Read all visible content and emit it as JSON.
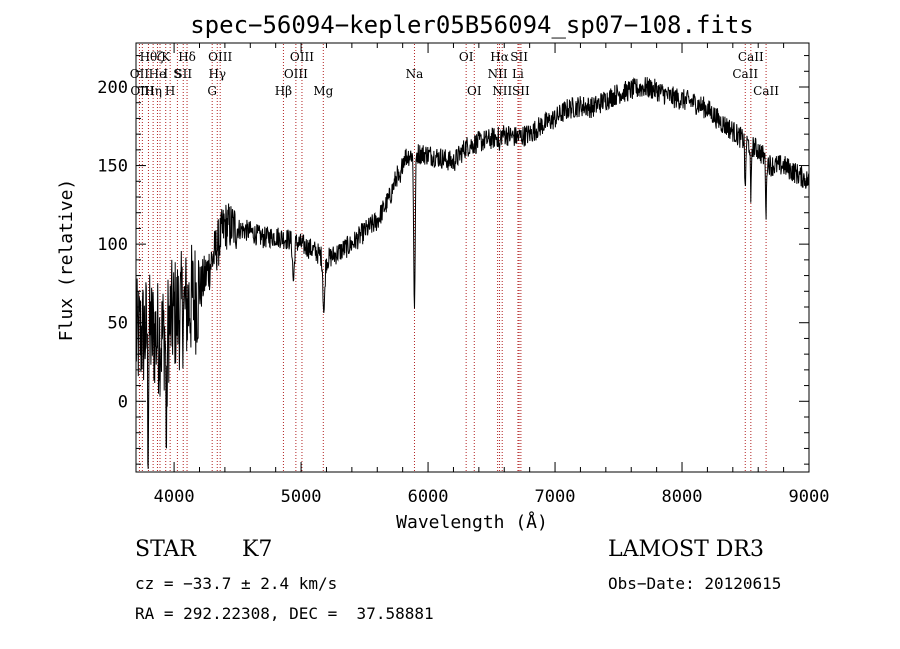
{
  "chart_data": {
    "type": "line",
    "title": "spec−56094−kepler05B56094_sp07−108.fits",
    "xlabel": "Wavelength (Å)",
    "ylabel": "Flux (relative)",
    "xlim": [
      3700,
      9000
    ],
    "ylim": [
      -45,
      228
    ],
    "x_ticks": [
      4000,
      5000,
      6000,
      7000,
      8000,
      9000
    ],
    "y_ticks": [
      0,
      50,
      100,
      150,
      200
    ],
    "continuum": [
      [
        3700,
        40
      ],
      [
        3800,
        45
      ],
      [
        3900,
        40
      ],
      [
        4000,
        55
      ],
      [
        4100,
        60
      ],
      [
        4200,
        70
      ],
      [
        4300,
        90
      ],
      [
        4400,
        112
      ],
      [
        4500,
        110
      ],
      [
        4600,
        108
      ],
      [
        4700,
        104
      ],
      [
        4800,
        105
      ],
      [
        4900,
        103
      ],
      [
        5000,
        100
      ],
      [
        5100,
        96
      ],
      [
        5200,
        90
      ],
      [
        5300,
        95
      ],
      [
        5400,
        100
      ],
      [
        5500,
        108
      ],
      [
        5600,
        115
      ],
      [
        5700,
        130
      ],
      [
        5800,
        155
      ],
      [
        5900,
        158
      ],
      [
        6000,
        157
      ],
      [
        6100,
        155
      ],
      [
        6200,
        152
      ],
      [
        6300,
        162
      ],
      [
        6400,
        165
      ],
      [
        6500,
        167
      ],
      [
        6600,
        170
      ],
      [
        6700,
        168
      ],
      [
        6800,
        170
      ],
      [
        6900,
        176
      ],
      [
        7000,
        180
      ],
      [
        7100,
        186
      ],
      [
        7200,
        188
      ],
      [
        7300,
        187
      ],
      [
        7400,
        192
      ],
      [
        7500,
        196
      ],
      [
        7600,
        198
      ],
      [
        7700,
        200
      ],
      [
        7800,
        198
      ],
      [
        7900,
        194
      ],
      [
        8000,
        192
      ],
      [
        8100,
        190
      ],
      [
        8200,
        186
      ],
      [
        8300,
        178
      ],
      [
        8400,
        172
      ],
      [
        8500,
        165
      ],
      [
        8600,
        160
      ],
      [
        8700,
        150
      ],
      [
        8800,
        150
      ],
      [
        8900,
        145
      ],
      [
        9000,
        140
      ]
    ],
    "absorption_features": [
      {
        "center": 5893,
        "depth": 100,
        "width": 8
      },
      {
        "center": 5180,
        "depth": 35,
        "width": 10
      },
      {
        "center": 5780,
        "depth": 12,
        "width": 14
      },
      {
        "center": 4940,
        "depth": 25,
        "width": 10
      },
      {
        "center": 3940,
        "depth": 75,
        "width": 6
      },
      {
        "center": 3795,
        "depth": 70,
        "width": 5
      },
      {
        "center": 8498,
        "depth": 35,
        "width": 5
      },
      {
        "center": 8542,
        "depth": 40,
        "width": 5
      },
      {
        "center": 8662,
        "depth": 35,
        "width": 5
      },
      {
        "center": 6563,
        "depth": 10,
        "width": 6
      }
    ],
    "line_markers": [
      {
        "wavelength": 3727,
        "labels": [
          {
            "text": "OII",
            "row": 1
          }
        ]
      },
      {
        "wavelength": 3750,
        "labels": [
          {
            "text": "OIII",
            "row": 2
          }
        ]
      },
      {
        "wavelength": 3798,
        "labels": [
          {
            "text": "Hθ",
            "row": 0
          }
        ]
      },
      {
        "wavelength": 3835,
        "labels": [
          {
            "text": "Hη",
            "row": 2
          }
        ]
      },
      {
        "wavelength": 3869,
        "labels": [
          {
            "text": "He",
            "row": 1
          }
        ]
      },
      {
        "wavelength": 3889,
        "labels": [
          {
            "text": "ζ",
            "row": 0
          }
        ]
      },
      {
        "wavelength": 3934,
        "labels": [
          {
            "text": "K",
            "row": 0
          },
          {
            "text": "I",
            "row": 1
          }
        ]
      },
      {
        "wavelength": 3969,
        "labels": [
          {
            "text": "H",
            "row": 2
          }
        ]
      },
      {
        "wavelength": 4026,
        "labels": [
          {
            "text": "S",
            "row": 1
          }
        ]
      },
      {
        "wavelength": 4072,
        "labels": [
          {
            "text": "SII",
            "row": 1
          }
        ]
      },
      {
        "wavelength": 4102,
        "labels": [
          {
            "text": "Hδ",
            "row": 0
          }
        ]
      },
      {
        "wavelength": 4300,
        "labels": [
          {
            "text": "G",
            "row": 2
          }
        ]
      },
      {
        "wavelength": 4340,
        "labels": [
          {
            "text": "Hγ",
            "row": 1
          }
        ]
      },
      {
        "wavelength": 4363,
        "labels": [
          {
            "text": "OIII",
            "row": 0
          }
        ]
      },
      {
        "wavelength": 4861,
        "labels": [
          {
            "text": "Hβ",
            "row": 2
          }
        ]
      },
      {
        "wavelength": 4959,
        "labels": [
          {
            "text": "OIII",
            "row": 1
          }
        ]
      },
      {
        "wavelength": 5007,
        "labels": [
          {
            "text": "OIII",
            "row": 0
          }
        ]
      },
      {
        "wavelength": 5175,
        "labels": [
          {
            "text": "Mg",
            "row": 2
          }
        ]
      },
      {
        "wavelength": 5893,
        "labels": [
          {
            "text": "Na",
            "row": 1
          }
        ]
      },
      {
        "wavelength": 6300,
        "labels": [
          {
            "text": "OI",
            "row": 0
          }
        ]
      },
      {
        "wavelength": 6364,
        "labels": [
          {
            "text": "OI",
            "row": 2
          }
        ]
      },
      {
        "wavelength": 6548,
        "labels": [
          {
            "text": "NII",
            "row": 1
          }
        ]
      },
      {
        "wavelength": 6563,
        "labels": [
          {
            "text": "Hα",
            "row": 0
          }
        ]
      },
      {
        "wavelength": 6584,
        "labels": [
          {
            "text": "NII",
            "row": 2
          }
        ]
      },
      {
        "wavelength": 6708,
        "labels": [
          {
            "text": "Li",
            "row": 1
          }
        ]
      },
      {
        "wavelength": 6717,
        "labels": [
          {
            "text": "SII",
            "row": 0
          }
        ]
      },
      {
        "wavelength": 6731,
        "labels": [
          {
            "text": "SII",
            "row": 2
          }
        ]
      },
      {
        "wavelength": 8498,
        "labels": [
          {
            "text": "CaII",
            "row": 1
          }
        ]
      },
      {
        "wavelength": 8542,
        "labels": [
          {
            "text": "CaII",
            "row": 0
          }
        ]
      },
      {
        "wavelength": 8662,
        "labels": [
          {
            "text": "CaII",
            "row": 2
          }
        ]
      }
    ],
    "colors": {
      "spectrum": "#000000",
      "marker_line": "#b22222",
      "axis": "#000000"
    }
  },
  "info": {
    "object_class": "STAR",
    "subclass": "K7",
    "survey": "LAMOST DR3",
    "redshift": "cz = −33.7 ± 2.4 km/s",
    "obs_date": "Obs−Date: 20120615",
    "coords": "RA = 292.22308, DEC =  37.58881"
  }
}
